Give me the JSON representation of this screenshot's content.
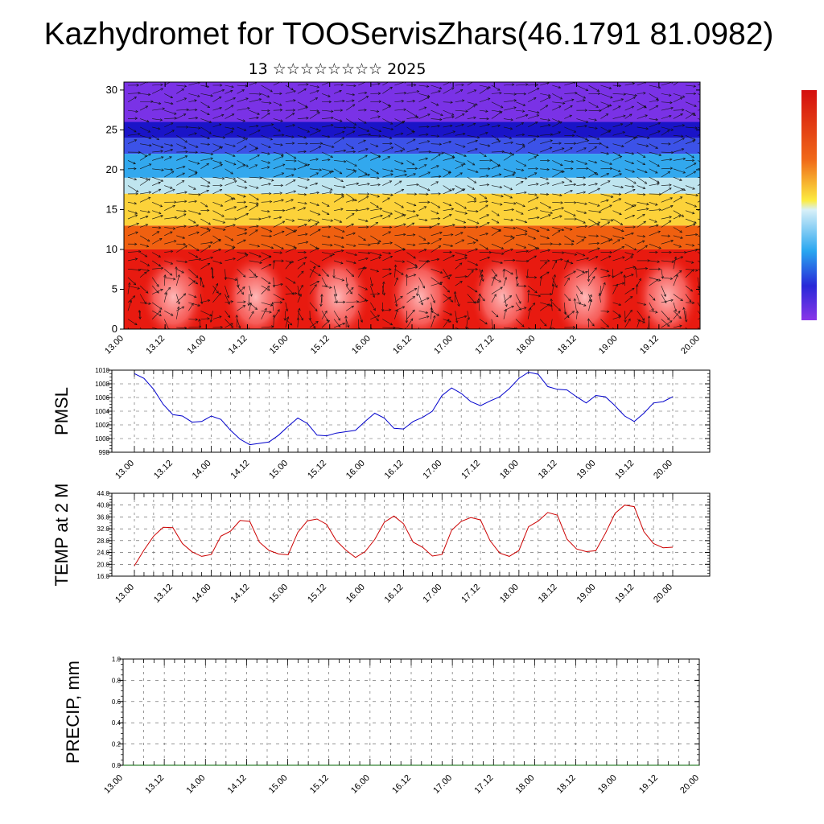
{
  "title": "Kazhydromet for TOOServisZhars(46.1791 81.0982)",
  "subtitle": "13 ☆☆☆☆☆☆☆☆ 2025",
  "x_tick_labels": [
    "13.00",
    "13.12",
    "14.00",
    "14.12",
    "15.00",
    "15.12",
    "16.00",
    "16.12",
    "17.00",
    "17.12",
    "18.00",
    "18.12",
    "19.00",
    "19.12",
    "20.00"
  ],
  "colors": {
    "pmsl": "#0000cc",
    "temp": "#cc0000",
    "precip": "#006600"
  },
  "chart_data": [
    {
      "name": "main-panel",
      "type": "heatmap",
      "y_range": [
        0,
        31
      ],
      "y_ticks": [
        "0",
        "5",
        "10",
        "15",
        "20",
        "25",
        "30"
      ],
      "bands": [
        {
          "y0": 0,
          "y1": 10,
          "color": "#e81a10"
        },
        {
          "y0": 10,
          "y1": 13,
          "color": "#f06010"
        },
        {
          "y0": 13,
          "y1": 17,
          "color": "#fcd23a"
        },
        {
          "y0": 17,
          "y1": 19,
          "color": "#bfe5ef"
        },
        {
          "y0": 19,
          "y1": 22,
          "color": "#32a8ee"
        },
        {
          "y0": 22,
          "y1": 24,
          "color": "#3c52e8"
        },
        {
          "y0": 24,
          "y1": 26,
          "color": "#1a14c8"
        },
        {
          "y0": 26,
          "y1": 31,
          "color": "#7a32e6"
        }
      ],
      "vectors": "wind-arrows"
    },
    {
      "name": "pmsl",
      "type": "line",
      "ylabel": "PMSL",
      "ylim": [
        998,
        1010
      ],
      "y_ticks": [
        "998",
        "1000",
        "1002",
        "1004",
        "1006",
        "1008",
        "1010"
      ],
      "x": [
        "13.00",
        "13.03",
        "13.06",
        "13.09",
        "13.12",
        "13.15",
        "13.18",
        "13.21",
        "14.00",
        "14.03",
        "14.06",
        "14.09",
        "14.12",
        "14.15",
        "14.18",
        "14.21",
        "15.00",
        "15.03",
        "15.06",
        "15.09",
        "15.12",
        "15.15",
        "15.18",
        "15.21",
        "16.00",
        "16.03",
        "16.06",
        "16.09",
        "16.12",
        "16.15",
        "16.18",
        "16.21",
        "17.00",
        "17.03",
        "17.06",
        "17.09",
        "17.12",
        "17.15",
        "17.18",
        "17.21",
        "18.00",
        "18.03",
        "18.06",
        "18.09",
        "18.12",
        "18.15",
        "18.18",
        "18.21",
        "19.00",
        "19.03",
        "19.06",
        "19.09",
        "19.12",
        "19.15",
        "19.18",
        "19.21",
        "20.00"
      ],
      "values": [
        1009.5,
        1008.8,
        1007.2,
        1005.0,
        1003.5,
        1003.3,
        1002.4,
        1002.5,
        1003.3,
        1002.8,
        1001.2,
        999.9,
        999.1,
        999.3,
        999.5,
        1000.5,
        1001.8,
        1003.0,
        1002.2,
        1000.5,
        1000.4,
        1000.8,
        1001.0,
        1001.2,
        1002.5,
        1003.7,
        1003.0,
        1001.5,
        1001.4,
        1002.5,
        1003.1,
        1004.0,
        1006.3,
        1007.4,
        1006.6,
        1005.4,
        1004.8,
        1005.5,
        1006.1,
        1007.3,
        1008.8,
        1009.7,
        1009.4,
        1007.6,
        1007.2,
        1007.1,
        1006.1,
        1005.2,
        1006.3,
        1006.1,
        1004.8,
        1003.3,
        1002.5,
        1003.7,
        1005.2,
        1005.4,
        1006.1
      ]
    },
    {
      "name": "temp",
      "type": "line",
      "ylabel": "TEMP at 2 M",
      "ylim": [
        16,
        44
      ],
      "y_ticks": [
        "16.0",
        "20.0",
        "24.0",
        "28.0",
        "32.0",
        "36.0",
        "40.0",
        "44.0"
      ],
      "x": [
        "13.00",
        "13.03",
        "13.06",
        "13.09",
        "13.12",
        "13.15",
        "13.18",
        "13.21",
        "14.00",
        "14.03",
        "14.06",
        "14.09",
        "14.12",
        "14.15",
        "14.18",
        "14.21",
        "15.00",
        "15.03",
        "15.06",
        "15.09",
        "15.12",
        "15.15",
        "15.18",
        "15.21",
        "16.00",
        "16.03",
        "16.06",
        "16.09",
        "16.12",
        "16.15",
        "16.18",
        "16.21",
        "17.00",
        "17.03",
        "17.06",
        "17.09",
        "17.12",
        "17.15",
        "17.18",
        "17.21",
        "18.00",
        "18.03",
        "18.06",
        "18.09",
        "18.12",
        "18.15",
        "18.18",
        "18.21",
        "19.00",
        "19.03",
        "19.06",
        "19.09",
        "19.12",
        "19.15",
        "19.18",
        "19.21",
        "20.00"
      ],
      "values": [
        19.5,
        24.8,
        29.5,
        32.5,
        32.4,
        27.0,
        24.2,
        22.7,
        23.3,
        29.5,
        31.2,
        34.8,
        34.5,
        27.5,
        24.7,
        23.5,
        23.2,
        30.8,
        34.7,
        35.3,
        33.5,
        28.0,
        24.8,
        22.3,
        24.3,
        28.4,
        34.2,
        36.3,
        33.7,
        27.5,
        25.7,
        22.8,
        23.3,
        31.5,
        34.5,
        35.8,
        35.0,
        28.0,
        23.8,
        22.7,
        24.7,
        32.7,
        34.6,
        37.5,
        36.6,
        28.5,
        25.2,
        24.3,
        24.6,
        30.5,
        37.2,
        40.0,
        39.5,
        31.0,
        27.0,
        25.6,
        25.8
      ]
    },
    {
      "name": "precip",
      "type": "line",
      "ylabel": "PRECIP, mm",
      "ylim": [
        0,
        1
      ],
      "y_ticks": [
        "0.0",
        "0.2",
        "0.4",
        "0.6",
        "0.8",
        "1.0"
      ],
      "x": [
        "13.00",
        "20.00"
      ],
      "values": [
        0,
        0
      ]
    }
  ]
}
